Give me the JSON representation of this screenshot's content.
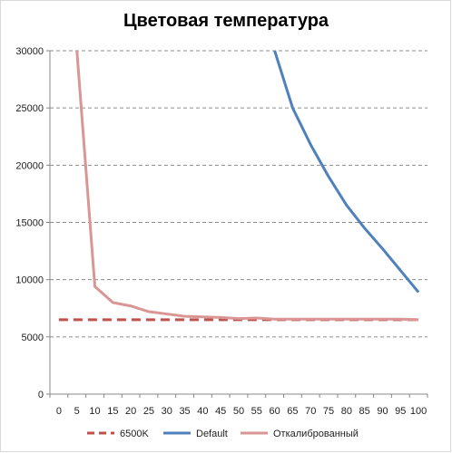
{
  "chart_data": {
    "type": "line",
    "title": "Цветовая температура",
    "xlabel": "",
    "ylabel": "",
    "x": [
      0,
      5,
      10,
      15,
      20,
      25,
      30,
      35,
      40,
      45,
      50,
      55,
      60,
      65,
      70,
      75,
      80,
      85,
      90,
      95,
      100
    ],
    "xlim": [
      0,
      100
    ],
    "ylim": [
      0,
      30000
    ],
    "y_ticks": [
      0,
      5000,
      10000,
      15000,
      20000,
      25000,
      30000
    ],
    "x_ticks": [
      0,
      5,
      10,
      15,
      20,
      25,
      30,
      35,
      40,
      45,
      50,
      55,
      60,
      65,
      70,
      75,
      80,
      85,
      90,
      95,
      100
    ],
    "grid": "horizontal-dashed",
    "legend_position": "bottom",
    "series": [
      {
        "name": "6500K",
        "color": "#c0504d",
        "style": "dashed",
        "values": [
          6500,
          6500,
          6500,
          6500,
          6500,
          6500,
          6500,
          6500,
          6500,
          6500,
          6500,
          6500,
          6500,
          6500,
          6500,
          6500,
          6500,
          6500,
          6500,
          6500,
          6500
        ]
      },
      {
        "name": "Default",
        "color": "#4f81bd",
        "style": "solid",
        "values": [
          null,
          null,
          null,
          null,
          null,
          null,
          null,
          null,
          null,
          null,
          null,
          null,
          30000,
          25000,
          21800,
          19000,
          16500,
          14500,
          12700,
          10800,
          8900
        ]
      },
      {
        "name": "Откалиброванный",
        "color": "#d99694",
        "style": "solid",
        "values": [
          null,
          30000,
          9400,
          8000,
          7700,
          7200,
          7000,
          6800,
          6750,
          6700,
          6600,
          6650,
          6550,
          6550,
          6550,
          6550,
          6550,
          6550,
          6550,
          6550,
          6500
        ]
      }
    ]
  }
}
